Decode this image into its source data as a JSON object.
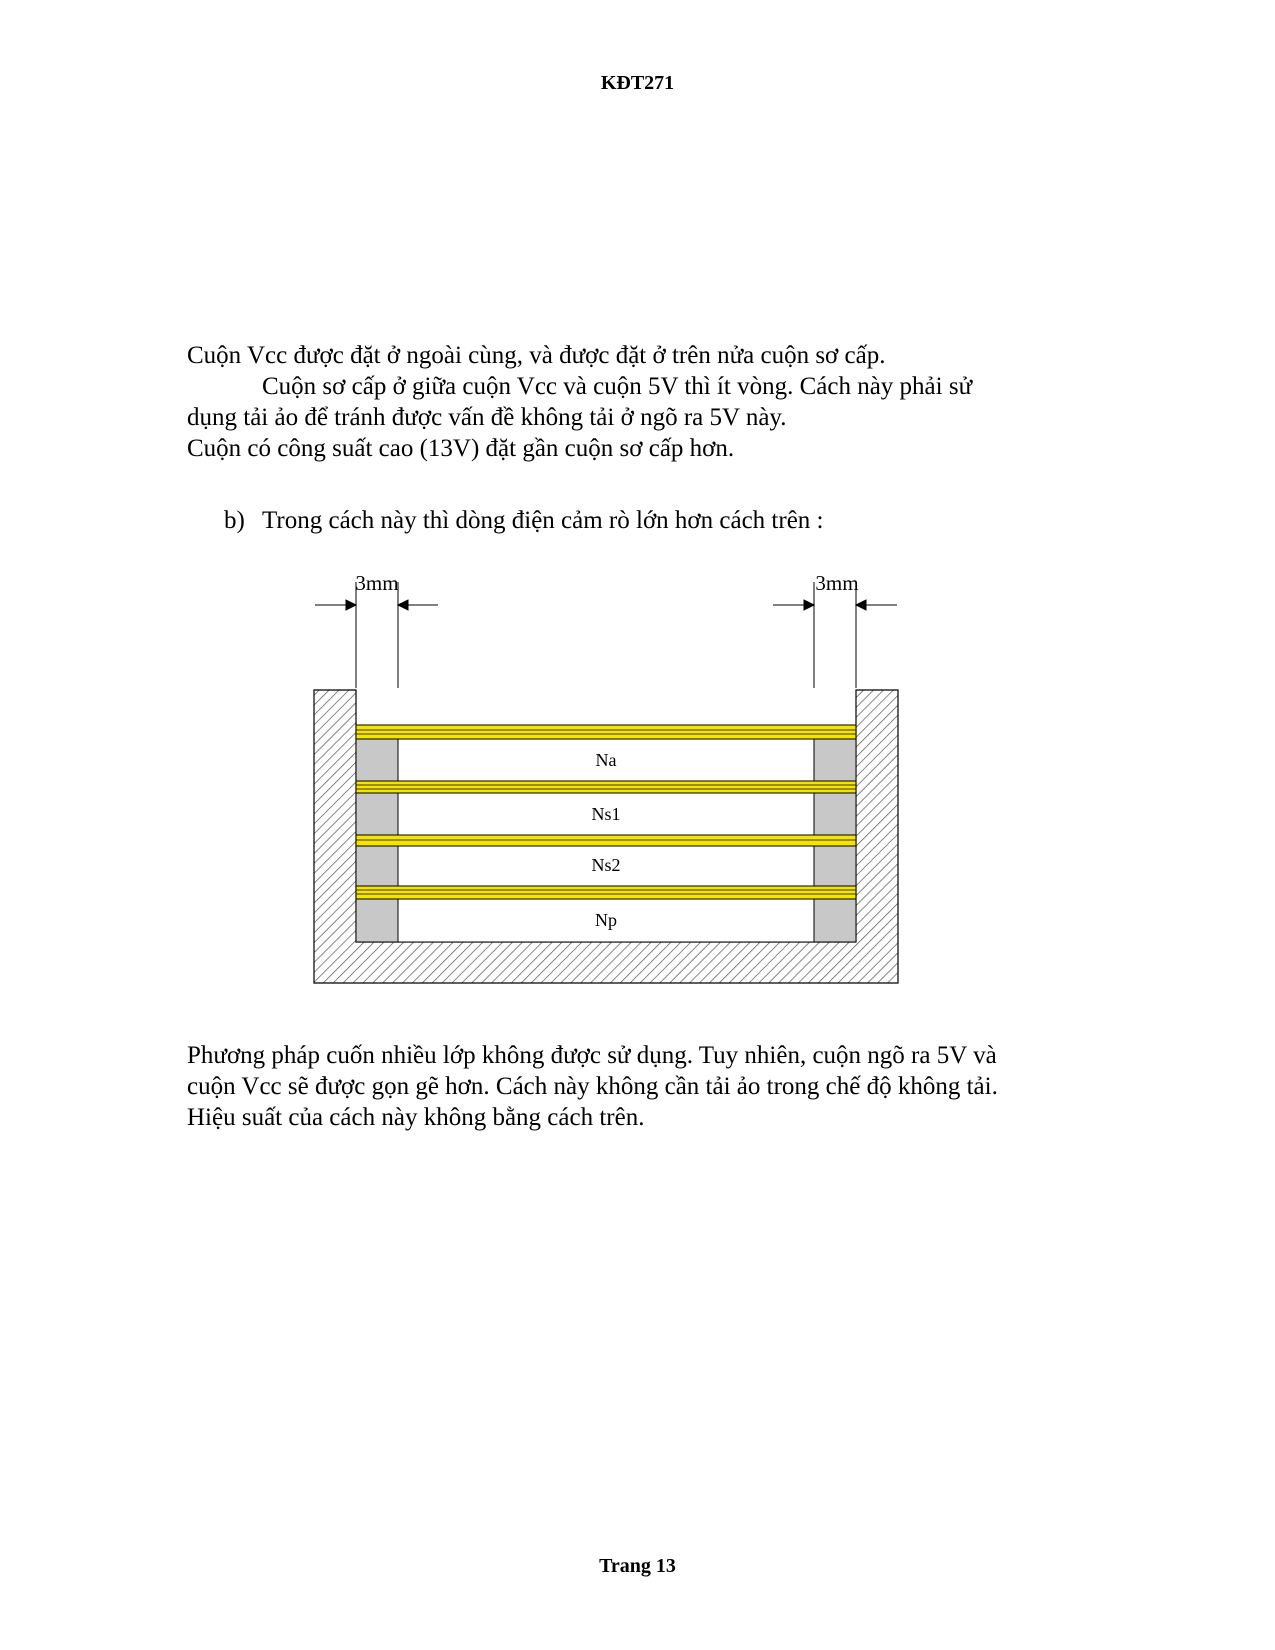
{
  "header": {
    "code": "KĐT271"
  },
  "paragraphs_top": [
    "Cuộn Vcc được đặt ở ngoài cùng, và được đặt ở trên nửa cuộn sơ cấp.",
    "Cuộn sơ cấp ở giữa cuộn Vcc và cuộn 5V thì ít vòng. Cách này phải sử",
    "dụng tải ảo để tránh được vấn đề không tải ở ngõ ra 5V này.",
    "Cuộn có công suất cao (13V) đặt gần cuộn sơ cấp hơn."
  ],
  "list_item": {
    "marker": "b)",
    "text": "Trong cách này thì dòng điện cảm rò lớn hơn cách trên :"
  },
  "figure": {
    "dim_left": "3mm",
    "dim_right": "3mm",
    "layers": [
      "Na",
      "Ns1",
      "Ns2",
      "Np"
    ],
    "colors": {
      "insulation": "#f5e400",
      "margin_tape": "#c8c8c8",
      "hatch": "#555555"
    }
  },
  "paragraphs_bottom": [
    "Phương pháp cuốn nhiều lớp không được sử dụng. Tuy nhiên, cuộn ngõ ra 5V và",
    "cuộn Vcc sẽ được gọn gẽ hơn. Cách này không cần tải ảo trong chế độ không tải.",
    "Hiệu suất của cách này không bằng cách trên."
  ],
  "footer": {
    "page": "Trang 13"
  }
}
